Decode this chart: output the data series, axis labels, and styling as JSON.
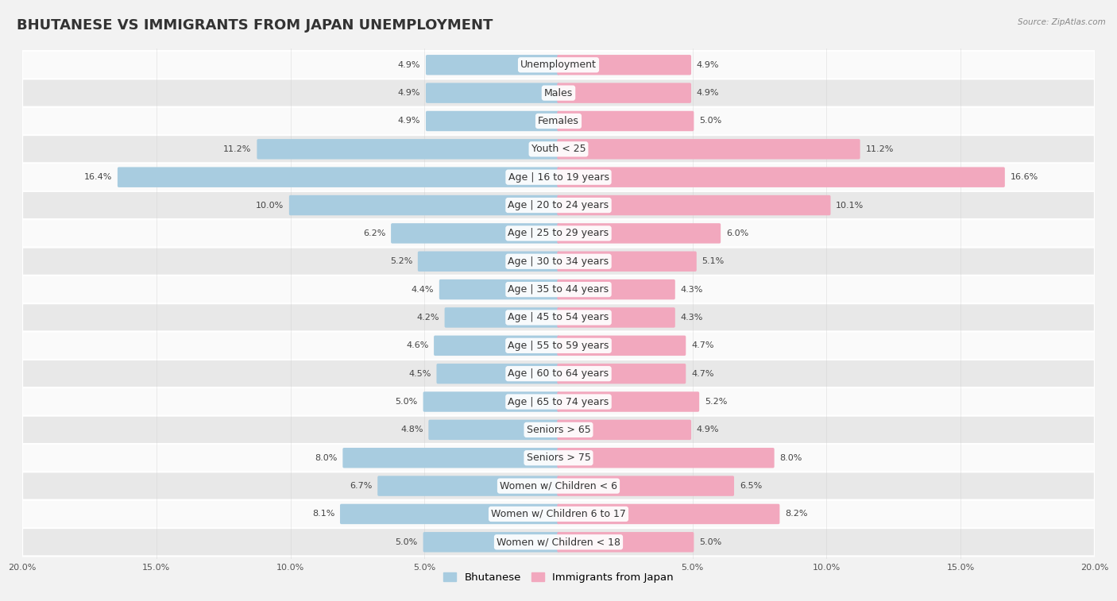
{
  "title": "BHUTANESE VS IMMIGRANTS FROM JAPAN UNEMPLOYMENT",
  "source": "Source: ZipAtlas.com",
  "categories": [
    "Unemployment",
    "Males",
    "Females",
    "Youth < 25",
    "Age | 16 to 19 years",
    "Age | 20 to 24 years",
    "Age | 25 to 29 years",
    "Age | 30 to 34 years",
    "Age | 35 to 44 years",
    "Age | 45 to 54 years",
    "Age | 55 to 59 years",
    "Age | 60 to 64 years",
    "Age | 65 to 74 years",
    "Seniors > 65",
    "Seniors > 75",
    "Women w/ Children < 6",
    "Women w/ Children 6 to 17",
    "Women w/ Children < 18"
  ],
  "bhutanese": [
    4.9,
    4.9,
    4.9,
    11.2,
    16.4,
    10.0,
    6.2,
    5.2,
    4.4,
    4.2,
    4.6,
    4.5,
    5.0,
    4.8,
    8.0,
    6.7,
    8.1,
    5.0
  ],
  "japan": [
    4.9,
    4.9,
    5.0,
    11.2,
    16.6,
    10.1,
    6.0,
    5.1,
    4.3,
    4.3,
    4.7,
    4.7,
    5.2,
    4.9,
    8.0,
    6.5,
    8.2,
    5.0
  ],
  "bhutanese_color": "#a8cce0",
  "japan_color": "#f2a8be",
  "axis_max": 20.0,
  "bg_color": "#f2f2f2",
  "row_bg_light": "#fafafa",
  "row_bg_dark": "#e8e8e8",
  "title_fontsize": 13,
  "label_fontsize": 9,
  "value_fontsize": 8,
  "legend_fontsize": 9.5
}
